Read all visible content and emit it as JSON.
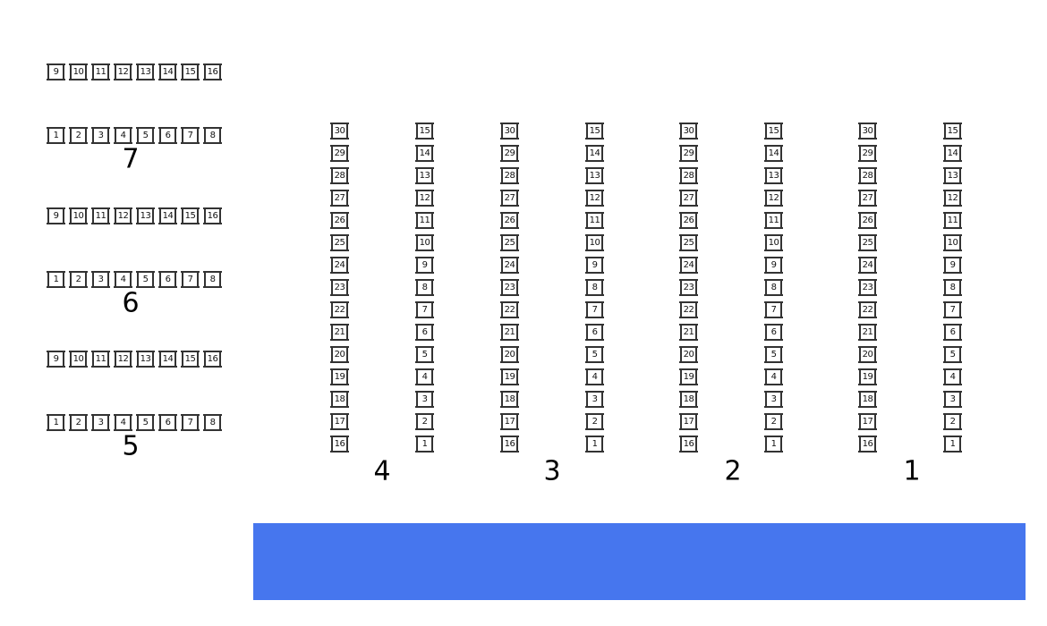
{
  "left_tables": [
    {
      "label": "7",
      "top_row": [
        "9",
        "10",
        "11",
        "12",
        "13",
        "14",
        "15",
        "16"
      ],
      "bottom_row": [
        "1",
        "2",
        "3",
        "4",
        "5",
        "6",
        "7",
        "8"
      ]
    },
    {
      "label": "6",
      "top_row": [
        "9",
        "10",
        "11",
        "12",
        "13",
        "14",
        "15",
        "16"
      ],
      "bottom_row": [
        "1",
        "2",
        "3",
        "4",
        "5",
        "6",
        "7",
        "8"
      ]
    },
    {
      "label": "5",
      "top_row": [
        "9",
        "10",
        "11",
        "12",
        "13",
        "14",
        "15",
        "16"
      ],
      "bottom_row": [
        "1",
        "2",
        "3",
        "4",
        "5",
        "6",
        "7",
        "8"
      ]
    }
  ],
  "column_tables": [
    {
      "label": "4",
      "left_column": [
        "30",
        "29",
        "28",
        "27",
        "26",
        "25",
        "24",
        "23",
        "22",
        "21",
        "20",
        "19",
        "18",
        "17",
        "16"
      ],
      "right_column": [
        "15",
        "14",
        "13",
        "12",
        "11",
        "10",
        "9",
        "8",
        "7",
        "6",
        "5",
        "4",
        "3",
        "2",
        "1"
      ]
    },
    {
      "label": "3",
      "left_column": [
        "30",
        "29",
        "28",
        "27",
        "26",
        "25",
        "24",
        "23",
        "22",
        "21",
        "20",
        "19",
        "18",
        "17",
        "16"
      ],
      "right_column": [
        "15",
        "14",
        "13",
        "12",
        "11",
        "10",
        "9",
        "8",
        "7",
        "6",
        "5",
        "4",
        "3",
        "2",
        "1"
      ]
    },
    {
      "label": "2",
      "left_column": [
        "30",
        "29",
        "28",
        "27",
        "26",
        "25",
        "24",
        "23",
        "22",
        "21",
        "20",
        "19",
        "18",
        "17",
        "16"
      ],
      "right_column": [
        "15",
        "14",
        "13",
        "12",
        "11",
        "10",
        "9",
        "8",
        "7",
        "6",
        "5",
        "4",
        "3",
        "2",
        "1"
      ]
    },
    {
      "label": "1",
      "left_column": [
        "30",
        "29",
        "28",
        "27",
        "26",
        "25",
        "24",
        "23",
        "22",
        "21",
        "20",
        "19",
        "18",
        "17",
        "16"
      ],
      "right_column": [
        "15",
        "14",
        "13",
        "12",
        "11",
        "10",
        "9",
        "8",
        "7",
        "6",
        "5",
        "4",
        "3",
        "2",
        "1"
      ]
    }
  ],
  "stage": {
    "color": "#4676EE"
  }
}
